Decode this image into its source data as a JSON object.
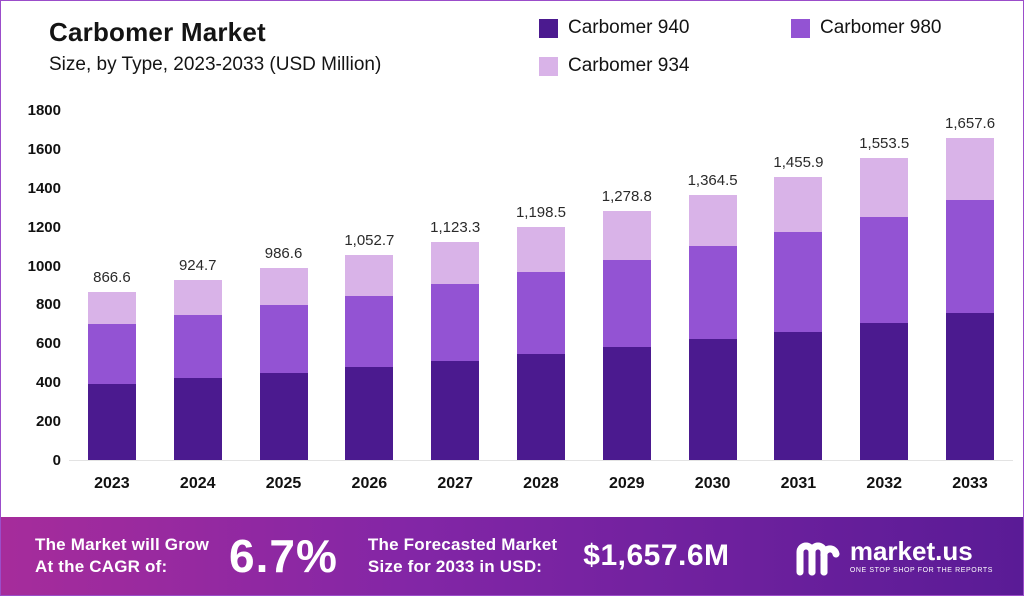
{
  "header": {
    "title": "Carbomer Market",
    "subtitle": "Size, by Type, 2023-2033 (USD Million)"
  },
  "legend": {
    "items": [
      {
        "label": "Carbomer 940",
        "color": "#4b1a8f"
      },
      {
        "label": "Carbomer 980",
        "color": "#9353d3"
      },
      {
        "label": "Carbomer 934",
        "color": "#d9b3e8"
      }
    ]
  },
  "chart_data": {
    "type": "bar",
    "stacked": true,
    "title": "Carbomer Market",
    "subtitle": "Size, by Type, 2023-2033 (USD Million)",
    "xlabel": "",
    "ylabel": "USD Million",
    "ylim": [
      0,
      1800
    ],
    "ytick_step": 200,
    "grid": false,
    "legend_position": "top-right",
    "categories": [
      "2023",
      "2024",
      "2025",
      "2026",
      "2027",
      "2028",
      "2029",
      "2030",
      "2031",
      "2032",
      "2033"
    ],
    "series": [
      {
        "name": "Carbomer 940",
        "color": "#4b1a8f",
        "values": [
          390,
          420,
          445,
          480,
          510,
          545,
          580,
          620,
          660,
          705,
          755
        ]
      },
      {
        "name": "Carbomer 980",
        "color": "#9353d3",
        "values": [
          310,
          325,
          350,
          365,
          395,
          420,
          450,
          480,
          515,
          545,
          580
        ]
      },
      {
        "name": "Carbomer 934",
        "color": "#d9b3e8",
        "values": [
          166.6,
          179.7,
          191.6,
          207.7,
          218.3,
          233.5,
          248.8,
          264.5,
          280.9,
          303.5,
          322.6
        ]
      }
    ],
    "totals": [
      866.6,
      924.7,
      986.6,
      1052.7,
      1123.3,
      1198.5,
      1278.8,
      1364.5,
      1455.9,
      1553.5,
      1657.6
    ],
    "total_labels": [
      "866.6",
      "924.7",
      "986.6",
      "1,052.7",
      "1,123.3",
      "1,198.5",
      "1,278.8",
      "1,364.5",
      "1,455.9",
      "1,553.5",
      "1,657.6"
    ]
  },
  "banner": {
    "cagr_line1": "The Market will Grow",
    "cagr_line2": "At the CAGR of:",
    "cagr_value": "6.7%",
    "forecast_line1": "The Forecasted Market",
    "forecast_line2": "Size for 2033 in USD:",
    "forecast_value": "$1,657.6M",
    "logo_name": "market.us",
    "logo_tagline": "ONE STOP SHOP FOR THE REPORTS",
    "gradient_left": "#a62c9b",
    "gradient_right": "#5a1b96"
  }
}
